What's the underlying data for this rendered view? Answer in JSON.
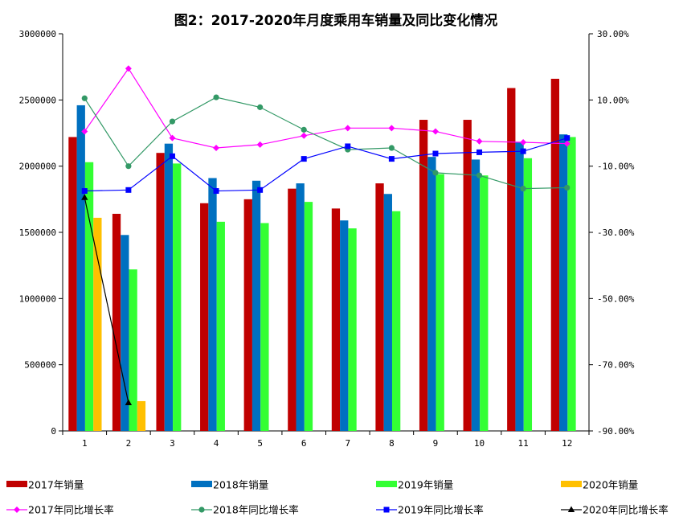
{
  "chart_data": {
    "type": "bar",
    "title": "图2：2017-2020年月度乘用车销量及同比变化情况",
    "categories": [
      "1",
      "2",
      "3",
      "4",
      "5",
      "6",
      "7",
      "8",
      "9",
      "10",
      "11",
      "12"
    ],
    "y_left": {
      "min": 0,
      "max": 3000000,
      "step": 500000,
      "tick_labels": [
        "0",
        "500000",
        "1000000",
        "1500000",
        "2000000",
        "2500000",
        "3000000"
      ]
    },
    "y_right": {
      "min": -90,
      "max": 30,
      "step": 20,
      "tick_labels": [
        "-90.00%",
        "-70.00%",
        "-50.00%",
        "-30.00%",
        "-10.00%",
        "10.00%",
        "30.00%"
      ]
    },
    "series": [
      {
        "name": "2017年销量",
        "kind": "bar",
        "color": "#c00000",
        "values": [
          2220000,
          1640000,
          2100000,
          1720000,
          1750000,
          1830000,
          1680000,
          1870000,
          2350000,
          2350000,
          2590000,
          2660000
        ]
      },
      {
        "name": "2018年销量",
        "kind": "bar",
        "color": "#0070c0",
        "values": [
          2460000,
          1480000,
          2170000,
          1910000,
          1890000,
          1870000,
          1590000,
          1790000,
          2070000,
          2050000,
          2180000,
          2240000
        ]
      },
      {
        "name": "2019年销量",
        "kind": "bar",
        "color": "#33ff33",
        "values": [
          2030000,
          1220000,
          2020000,
          1580000,
          1570000,
          1730000,
          1530000,
          1660000,
          1940000,
          1930000,
          2060000,
          2220000
        ]
      },
      {
        "name": "2020年销量",
        "kind": "bar",
        "color": "#ffc000",
        "values": [
          1610000,
          225000,
          null,
          null,
          null,
          null,
          null,
          null,
          null,
          null,
          null,
          null
        ]
      },
      {
        "name": "2017年同比增长率",
        "kind": "line",
        "color": "#ff00ff",
        "marker": "diamond",
        "values": [
          0.5,
          19.5,
          -1.5,
          -4.5,
          -3.5,
          -0.8,
          1.5,
          1.5,
          0.5,
          -2.5,
          -2.8,
          -3.2
        ]
      },
      {
        "name": "2018年同比增长率",
        "kind": "line",
        "color": "#339966",
        "marker": "circle",
        "values": [
          10.5,
          -10.0,
          3.5,
          10.8,
          7.8,
          1.0,
          -5.0,
          -4.5,
          -12.0,
          -12.8,
          -16.8,
          -16.5
        ]
      },
      {
        "name": "2019年同比增长率",
        "kind": "line",
        "color": "#0000ff",
        "marker": "square",
        "values": [
          -17.5,
          -17.2,
          -7.0,
          -17.5,
          -17.2,
          -7.8,
          -4.0,
          -7.8,
          -6.2,
          -5.8,
          -5.5,
          -1.5
        ]
      },
      {
        "name": "2020年同比增长率",
        "kind": "line",
        "color": "#000000",
        "marker": "triangle",
        "values": [
          -19.5,
          -81.5,
          null,
          null,
          null,
          null,
          null,
          null,
          null,
          null,
          null,
          null
        ]
      }
    ],
    "legend_position": "bottom",
    "grid": false
  }
}
